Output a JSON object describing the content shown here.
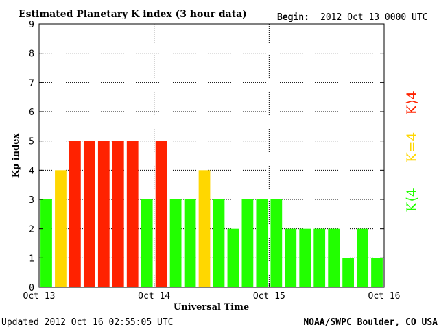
{
  "header": {
    "title": "Estimated Planetary K index (3 hour data)",
    "begin_label": "Begin:",
    "begin_value": "2012 Oct 13 0000 UTC"
  },
  "footer": {
    "updated": "Updated 2012 Oct 16 02:55:05 UTC",
    "source": "NOAA/SWPC Boulder, CO USA"
  },
  "legend": {
    "above": "K⟩4",
    "equal": "K=4",
    "below": "K⟨4"
  },
  "colors": {
    "below": "#22ff00",
    "equal": "#ffd700",
    "above": "#ff2200",
    "frame": "#000000"
  },
  "chart_data": {
    "type": "bar",
    "xlabel": "Universal Time",
    "ylabel": "Kp index",
    "ylim": [
      0,
      9
    ],
    "yticks": [
      "0",
      "1",
      "2",
      "3",
      "4",
      "5",
      "6",
      "7",
      "8",
      "9"
    ],
    "xticks": [
      "Oct 13",
      "Oct 14",
      "Oct 15",
      "Oct 16"
    ],
    "grid": true,
    "bars_per_day": 8,
    "values": [
      3,
      4,
      5,
      5,
      5,
      5,
      5,
      3,
      5,
      3,
      3,
      4,
      3,
      2,
      3,
      3,
      3,
      2,
      2,
      2,
      2,
      1,
      2,
      1
    ]
  }
}
